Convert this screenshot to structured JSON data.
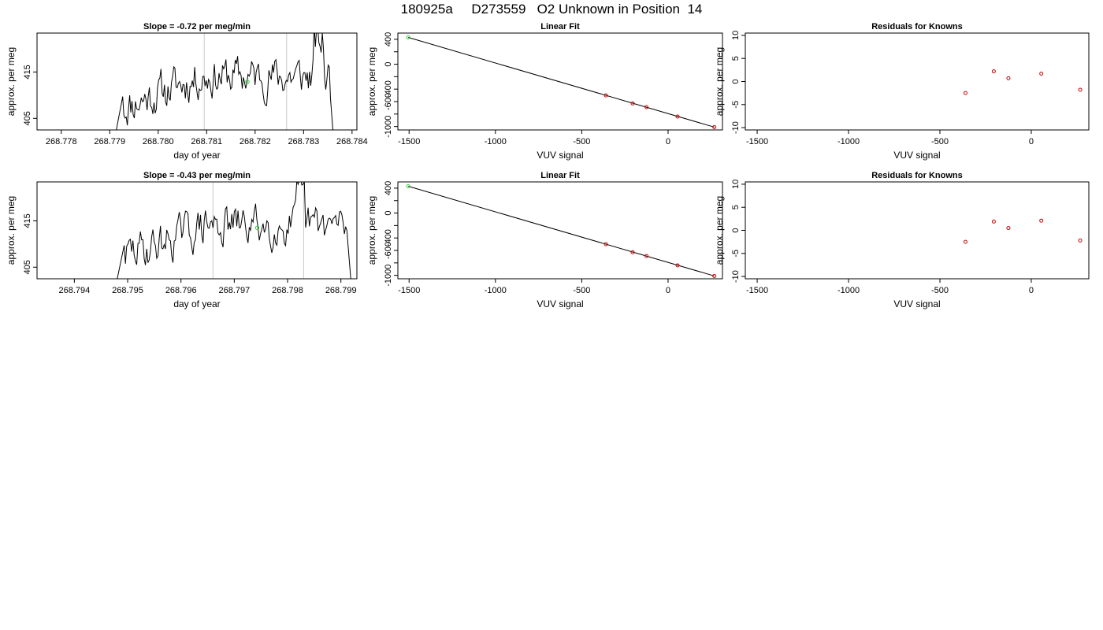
{
  "figure": {
    "title": "180925a     D273559   O2 Unknown in Position  14"
  },
  "chart_data": [
    {
      "id": "ts1",
      "type": "line",
      "title": "Slope =  -0.72  per meg/min",
      "xlabel": "day of year",
      "ylabel": "approx. per meg",
      "xlim": [
        268.7775,
        268.7841
      ],
      "ylim": [
        402.5,
        423.4
      ],
      "xticks": [
        268.778,
        268.779,
        268.78,
        268.781,
        268.782,
        268.783,
        268.784
      ],
      "xtick_labels": [
        "268.778",
        "268.779",
        "268.780",
        "268.781",
        "268.782",
        "268.783",
        "268.784"
      ],
      "yticks": [
        405,
        415
      ],
      "ytick_labels": [
        "405",
        "415"
      ],
      "vlines": [
        268.78095,
        268.78265
      ],
      "x_start": 268.7791,
      "x_end": 268.78365,
      "signal_seed": 11,
      "marker": {
        "x": 268.78184,
        "y": 412.9,
        "color": "#33cc33"
      },
      "line_color": "#000000",
      "grid": false,
      "legend": "none"
    },
    {
      "id": "fit1",
      "type": "scatter",
      "title": "Linear Fit",
      "xlabel": "VUV signal",
      "ylabel": "approx. per meg",
      "xlim": [
        -1565,
        315
      ],
      "ylim": [
        -1055,
        500
      ],
      "xticks": [
        -1500,
        -1000,
        -500,
        0
      ],
      "xtick_labels": [
        "-1500",
        "-1000",
        "-500",
        "0"
      ],
      "yticks": [
        -1000,
        -600,
        -400,
        0,
        400
      ],
      "ytick_labels": [
        "-1000",
        "-600",
        "-400",
        "0",
        "400"
      ],
      "yminor_ticks": [
        -800,
        -200,
        200
      ],
      "fit_line": [
        [
          -1505,
          430
        ],
        [
          268,
          -1010
        ]
      ],
      "points": [
        {
          "x": -1505,
          "y": 430,
          "color": "#33cc33"
        },
        {
          "x": -360,
          "y": -500,
          "color": "#cc0000"
        },
        {
          "x": -205,
          "y": -630,
          "color": "#cc0000"
        },
        {
          "x": -125,
          "y": -690,
          "color": "#cc0000"
        },
        {
          "x": 55,
          "y": -840,
          "color": "#cc0000"
        },
        {
          "x": 268,
          "y": -1010,
          "color": "#cc0000"
        }
      ],
      "legend": "none"
    },
    {
      "id": "res1",
      "type": "scatter",
      "title": "Residuals for Knowns",
      "xlabel": "VUV signal",
      "ylabel": "approx. per meg",
      "xlim": [
        -1565,
        315
      ],
      "ylim": [
        -10.5,
        10.5
      ],
      "xticks": [
        -1500,
        -1000,
        -500,
        0
      ],
      "xtick_labels": [
        "-1500",
        "-1000",
        "-500",
        "0"
      ],
      "yticks": [
        -10,
        -5,
        0,
        5,
        10
      ],
      "ytick_labels": [
        "-10",
        "-5",
        "0",
        "5",
        "10"
      ],
      "points": [
        {
          "x": -360,
          "y": -2.5,
          "color": "#cc0000"
        },
        {
          "x": -205,
          "y": 2.2,
          "color": "#cc0000"
        },
        {
          "x": -125,
          "y": 0.7,
          "color": "#cc0000"
        },
        {
          "x": 55,
          "y": 1.7,
          "color": "#cc0000"
        },
        {
          "x": 268,
          "y": -1.8,
          "color": "#cc0000"
        }
      ],
      "legend": "none"
    },
    {
      "id": "ts2",
      "type": "line",
      "title": "Slope =  -0.43  per meg/min",
      "xlabel": "day of year",
      "ylabel": "approx. per meg",
      "xlim": [
        268.7933,
        268.7993
      ],
      "ylim": [
        402.5,
        423.4
      ],
      "xticks": [
        268.794,
        268.795,
        268.796,
        268.797,
        268.798,
        268.799
      ],
      "xtick_labels": [
        "268.794",
        "268.795",
        "268.796",
        "268.797",
        "268.798",
        "268.799"
      ],
      "yticks": [
        405,
        415
      ],
      "ytick_labels": [
        "405",
        "415"
      ],
      "vlines": [
        268.7966,
        268.7983
      ],
      "x_start": 268.79477,
      "x_end": 268.79923,
      "signal_seed": 29,
      "marker": {
        "x": 268.79743,
        "y": 413.5,
        "color": "#33cc33"
      },
      "line_color": "#000000",
      "grid": false,
      "legend": "none"
    },
    {
      "id": "fit2",
      "type": "scatter",
      "title": "Linear Fit",
      "xlabel": "VUV signal",
      "ylabel": "approx. per meg",
      "xlim": [
        -1565,
        315
      ],
      "ylim": [
        -1055,
        500
      ],
      "xticks": [
        -1500,
        -1000,
        -500,
        0
      ],
      "xtick_labels": [
        "-1500",
        "-1000",
        "-500",
        "0"
      ],
      "yticks": [
        -1000,
        -600,
        -400,
        0,
        400
      ],
      "ytick_labels": [
        "-1000",
        "-600",
        "-400",
        "0",
        "400"
      ],
      "yminor_ticks": [
        -800,
        -200,
        200
      ],
      "fit_line": [
        [
          -1505,
          430
        ],
        [
          268,
          -1010
        ]
      ],
      "points": [
        {
          "x": -1505,
          "y": 430,
          "color": "#33cc33"
        },
        {
          "x": -360,
          "y": -500,
          "color": "#cc0000"
        },
        {
          "x": -205,
          "y": -630,
          "color": "#cc0000"
        },
        {
          "x": -125,
          "y": -690,
          "color": "#cc0000"
        },
        {
          "x": 55,
          "y": -840,
          "color": "#cc0000"
        },
        {
          "x": 268,
          "y": -1010,
          "color": "#cc0000"
        }
      ],
      "legend": "none"
    },
    {
      "id": "res2",
      "type": "scatter",
      "title": "Residuals for Knowns",
      "xlabel": "VUV signal",
      "ylabel": "approx. per meg",
      "xlim": [
        -1565,
        315
      ],
      "ylim": [
        -10.5,
        10.5
      ],
      "xticks": [
        -1500,
        -1000,
        -500,
        0
      ],
      "xtick_labels": [
        "-1500",
        "-1000",
        "-500",
        "0"
      ],
      "yticks": [
        -10,
        -5,
        0,
        5,
        10
      ],
      "ytick_labels": [
        "-10",
        "-5",
        "0",
        "5",
        "10"
      ],
      "points": [
        {
          "x": -360,
          "y": -2.5,
          "color": "#cc0000"
        },
        {
          "x": -205,
          "y": 1.9,
          "color": "#cc0000"
        },
        {
          "x": -125,
          "y": 0.5,
          "color": "#cc0000"
        },
        {
          "x": 55,
          "y": 2.1,
          "color": "#cc0000"
        },
        {
          "x": 268,
          "y": -2.2,
          "color": "#cc0000"
        }
      ],
      "legend": "none"
    }
  ]
}
